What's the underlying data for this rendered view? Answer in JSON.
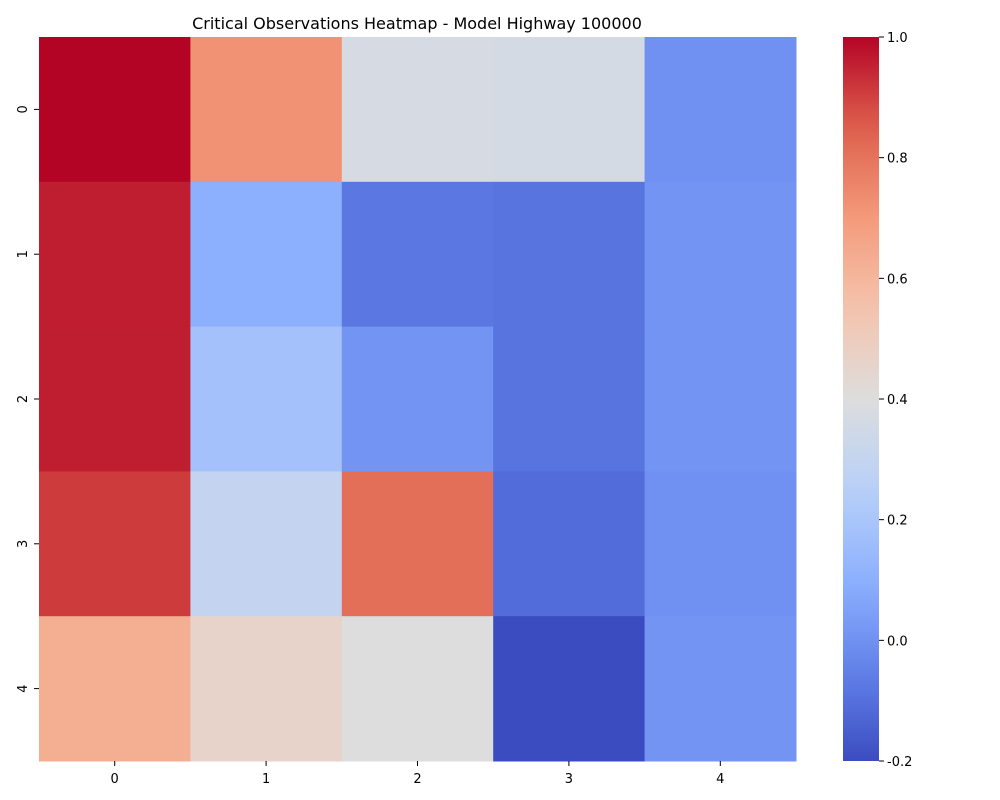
{
  "chart_data": {
    "type": "heatmap",
    "title": "Critical Observations Heatmap - Model Highway 100000",
    "x_categories": [
      "0",
      "1",
      "2",
      "3",
      "4"
    ],
    "y_categories": [
      "0",
      "1",
      "2",
      "3",
      "4"
    ],
    "values": [
      [
        1.0,
        0.72,
        0.37,
        0.36,
        0.0
      ],
      [
        0.96,
        0.1,
        -0.08,
        -0.09,
        0.01
      ],
      [
        0.96,
        0.18,
        0.01,
        -0.09,
        0.01
      ],
      [
        0.91,
        0.3,
        0.81,
        -0.11,
        0.0
      ],
      [
        0.63,
        0.46,
        0.4,
        -0.2,
        0.01
      ]
    ],
    "colormap": "coolwarm",
    "vmin": -0.2,
    "vmax": 1.0,
    "colorbar_ticks": [
      "-0.2",
      "0.0",
      "0.2",
      "0.4",
      "0.6",
      "0.8",
      "1.0"
    ],
    "colorbar_tick_values": [
      -0.2,
      0.0,
      0.2,
      0.4,
      0.6,
      0.8,
      1.0
    ]
  }
}
